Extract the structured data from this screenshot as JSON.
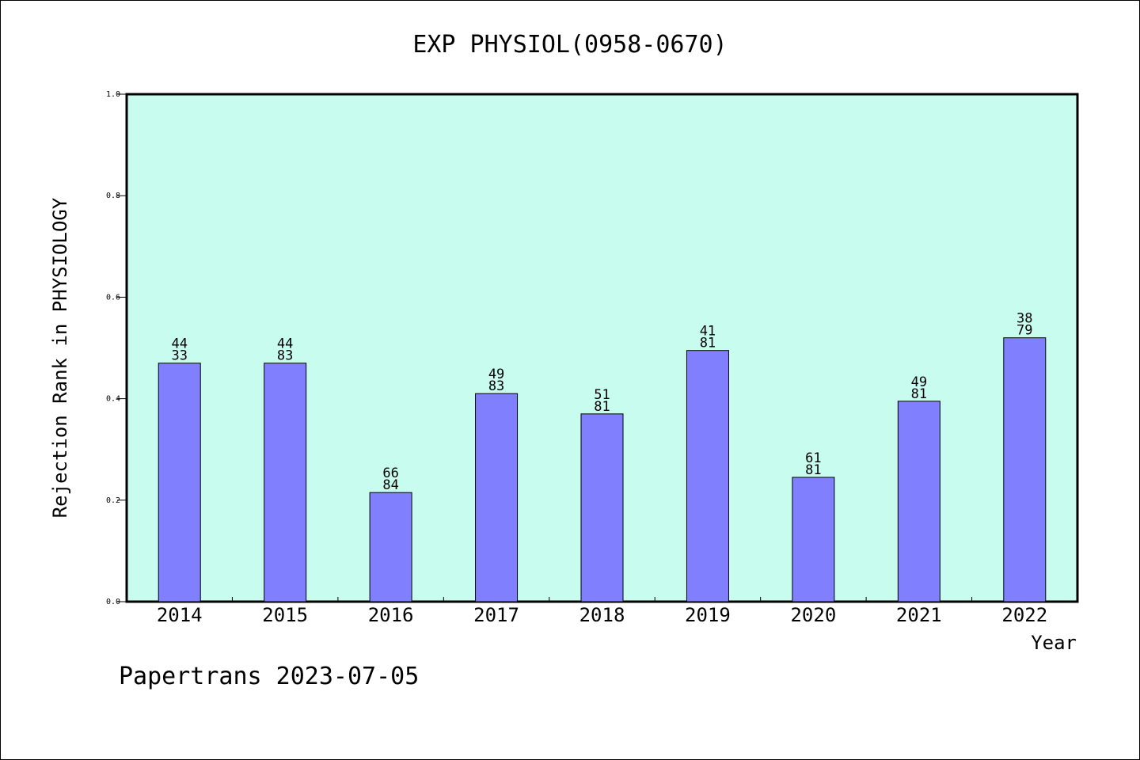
{
  "chart_data": {
    "type": "bar",
    "title": "EXP PHYSIOL(0958-0670)",
    "xlabel": "Year",
    "ylabel": "Rejection Rank in PHYSIOLOGY",
    "categories": [
      "2014",
      "2015",
      "2016",
      "2017",
      "2018",
      "2019",
      "2020",
      "2021",
      "2022"
    ],
    "values": [
      0.47,
      0.47,
      0.215,
      0.41,
      0.37,
      0.495,
      0.245,
      0.395,
      0.52
    ],
    "labels_top": [
      "44",
      "44",
      "66",
      "49",
      "51",
      "41",
      "61",
      "49",
      "38"
    ],
    "labels_bottom": [
      "33",
      "83",
      "84",
      "83",
      "81",
      "81",
      "81",
      "81",
      "79"
    ],
    "ylim": [
      0,
      1.0
    ],
    "yticks": [
      "0.0",
      "0.2",
      "0.4",
      "0.6",
      "0.8",
      "1.0"
    ],
    "grid": false,
    "colors": {
      "plot_bg": "#c8fcee",
      "bar": "#8080ff"
    }
  },
  "footer": "Papertrans 2023-07-05"
}
